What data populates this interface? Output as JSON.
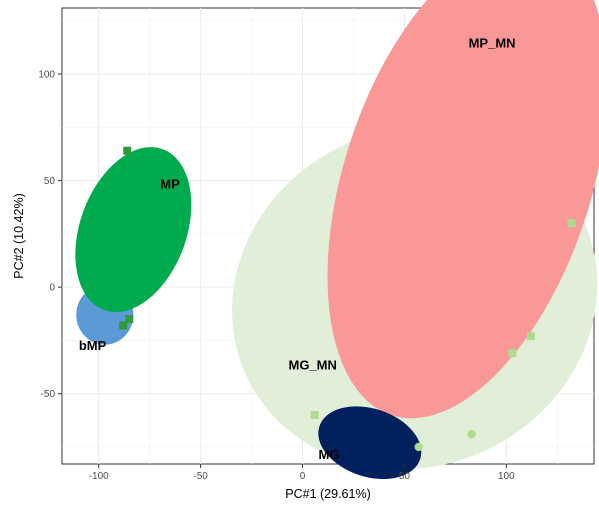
{
  "chart_data": {
    "type": "scatter",
    "xlabel": "PC#1 (29.61%)",
    "ylabel": "PC#2 (10.42%)",
    "xlim": [
      -118,
      143
    ],
    "ylim": [
      -83,
      131
    ],
    "x_ticks": [
      -100,
      -50,
      0,
      50,
      100
    ],
    "y_ticks": [
      -50,
      0,
      50,
      100
    ],
    "x_tick_labels": [
      "-100",
      "-50",
      "0",
      "50",
      "100"
    ],
    "y_tick_labels": [
      "-50",
      "0",
      "50",
      "100"
    ],
    "grid": true,
    "legend": "none",
    "ellipses": [
      {
        "id": "mg-mn-ellipse",
        "cx": 55,
        "cy": -5,
        "rx": 91,
        "ry": 79,
        "angle": -25,
        "color": "#e1eed8"
      },
      {
        "id": "mp-mn-ellipse",
        "cx": 81,
        "cy": 50,
        "rx": 121,
        "ry": 58,
        "angle": -72,
        "color": "#fa9797"
      },
      {
        "id": "bmp-ellipse",
        "cx": -97,
        "cy": -13,
        "rx": 14,
        "ry": 14,
        "angle": 0,
        "color": "#5b9ad6"
      },
      {
        "id": "mp-ellipse",
        "cx": -83,
        "cy": 27,
        "rx": 42,
        "ry": 25,
        "angle": -70,
        "color": "#00ab4e"
      },
      {
        "id": "mg-ellipse",
        "cx": 33,
        "cy": -73,
        "rx": 26,
        "ry": 16,
        "angle": 18,
        "color": "#00215e"
      }
    ],
    "points": [
      {
        "x": 132,
        "y": 30,
        "shape": "square",
        "color": "#addc91"
      },
      {
        "x": 112,
        "y": -23,
        "shape": "square",
        "color": "#addc91"
      },
      {
        "x": 103,
        "y": -31,
        "shape": "square",
        "color": "#addc91"
      },
      {
        "x": 83,
        "y": -69,
        "shape": "circle",
        "color": "#addc91"
      },
      {
        "x": 6,
        "y": -60,
        "shape": "square",
        "color": "#addc91"
      },
      {
        "x": 57,
        "y": -75,
        "shape": "circle",
        "color": "#addc91"
      },
      {
        "x": -85,
        "y": -15,
        "shape": "square",
        "color": "#2e9b3a"
      },
      {
        "x": -88,
        "y": -18,
        "shape": "square",
        "color": "#2e9b3a"
      },
      {
        "x": -86,
        "y": 64,
        "shape": "square",
        "color": "#2e9b3a"
      }
    ],
    "group_labels": [
      {
        "text": "MP_MN",
        "x": 93,
        "y": 114
      },
      {
        "text": "MP",
        "x": -65,
        "y": 48
      },
      {
        "text": "bMP",
        "x": -103,
        "y": -28
      },
      {
        "text": "MG_MN",
        "x": 5,
        "y": -37
      },
      {
        "text": "MG",
        "x": 13,
        "y": -79
      }
    ]
  }
}
